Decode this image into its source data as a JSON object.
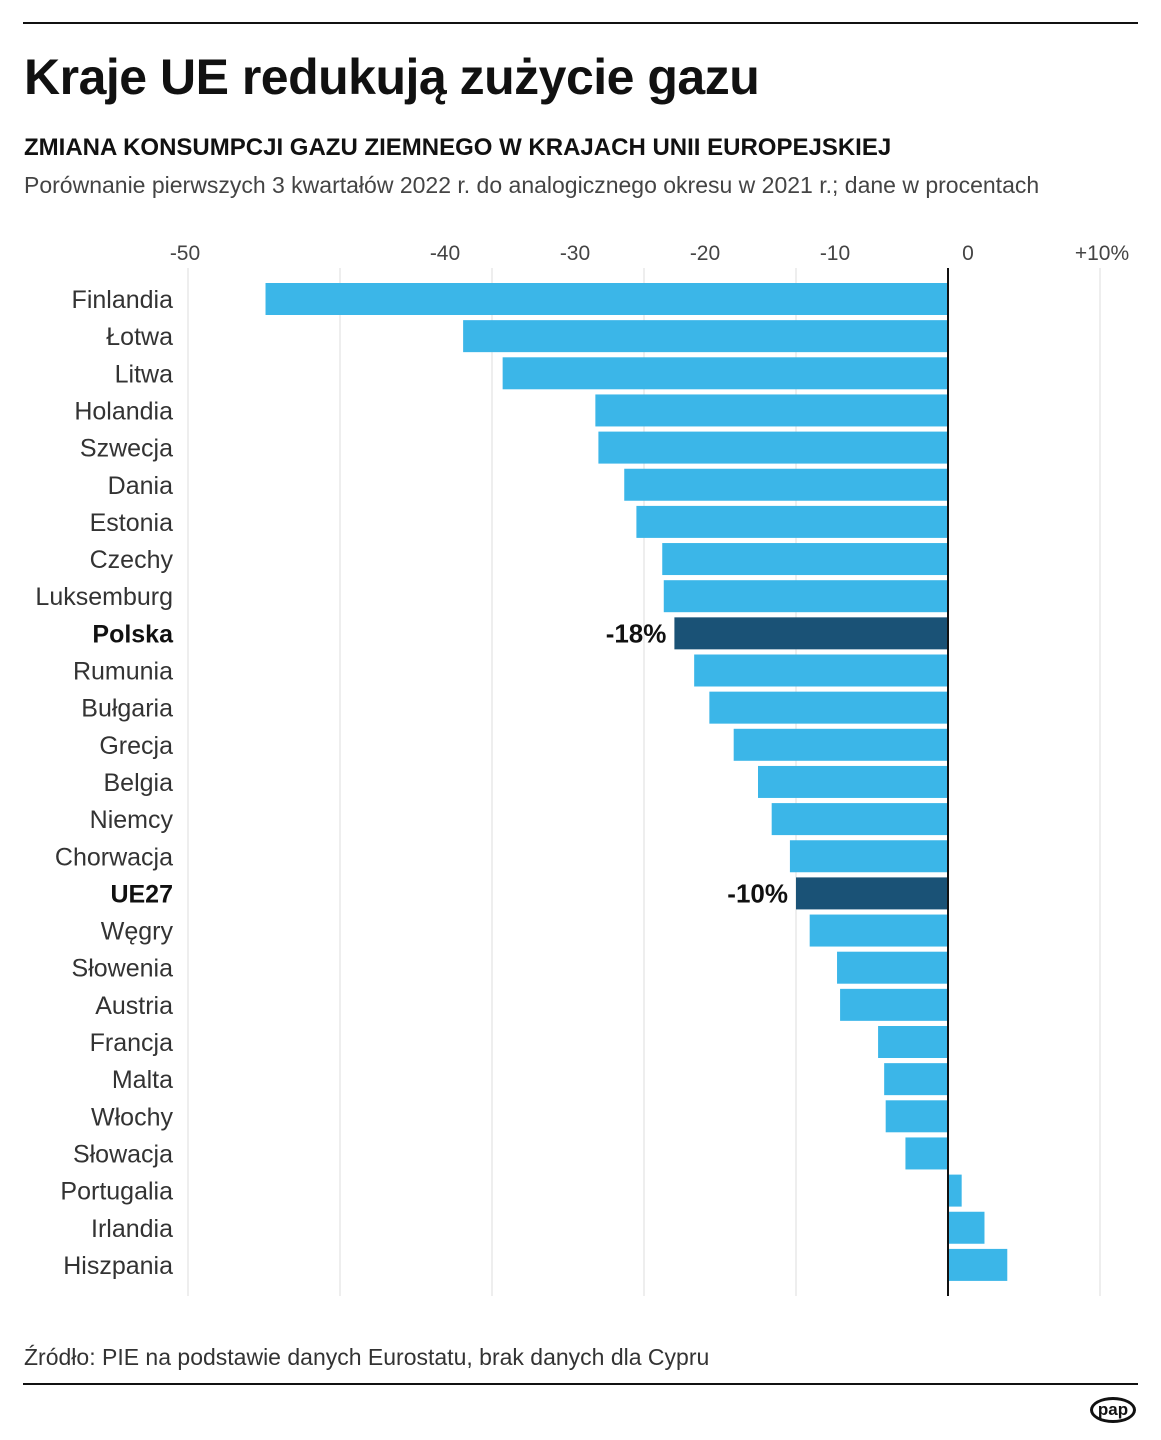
{
  "title": "Kraje UE redukują zużycie gazu",
  "subtitle": "ZMIANA KONSUMPCJI GAZU ZIEMNEGO W KRAJACH UNII EUROPEJSKIEJ",
  "description": "Porównanie pierwszych 3 kwartałów 2022 r. do analogicznego okresu w 2021 r.; dane w procentach",
  "source": "Źródło: PIE na podstawie danych Eurostatu, brak danych dla Cypru",
  "logo": "pap",
  "colors": {
    "bar": "#3bb6e8",
    "highlight": "#1a5276",
    "zero_line": "#111111",
    "grid": "#dddddd"
  },
  "chart_data": {
    "type": "bar",
    "orientation": "horizontal",
    "title": "Kraje UE redukują zużycie gazu",
    "xlim": [
      -50,
      10
    ],
    "grid": true,
    "tick_labels": [
      "-50",
      "-40",
      "-30",
      "-20",
      "-10",
      "0",
      "+10%"
    ],
    "categories": [
      "Finlandia",
      "Łotwa",
      "Litwa",
      "Holandia",
      "Szwecja",
      "Dania",
      "Estonia",
      "Czechy",
      "Luksemburg",
      "Polska",
      "Rumunia",
      "Bułgaria",
      "Grecja",
      "Belgia",
      "Niemcy",
      "Chorwacja",
      "UE27",
      "Węgry",
      "Słowenia",
      "Austria",
      "Francja",
      "Malta",
      "Włochy",
      "Słowacja",
      "Portugalia",
      "Irlandia",
      "Hiszpania"
    ],
    "values": [
      -44.9,
      -31.9,
      -29.3,
      -23.2,
      -23.0,
      -21.3,
      -20.5,
      -18.8,
      -18.7,
      -18,
      -16.7,
      -15.7,
      -14.1,
      -12.5,
      -11.6,
      -10.4,
      -10,
      -9.1,
      -7.3,
      -7.1,
      -4.6,
      -4.2,
      -4.1,
      -2.8,
      0.9,
      2.4,
      3.9
    ],
    "highlighted": [
      "Polska",
      "UE27"
    ],
    "data_labels": {
      "Polska": "-18%",
      "UE27": "-10%"
    }
  }
}
